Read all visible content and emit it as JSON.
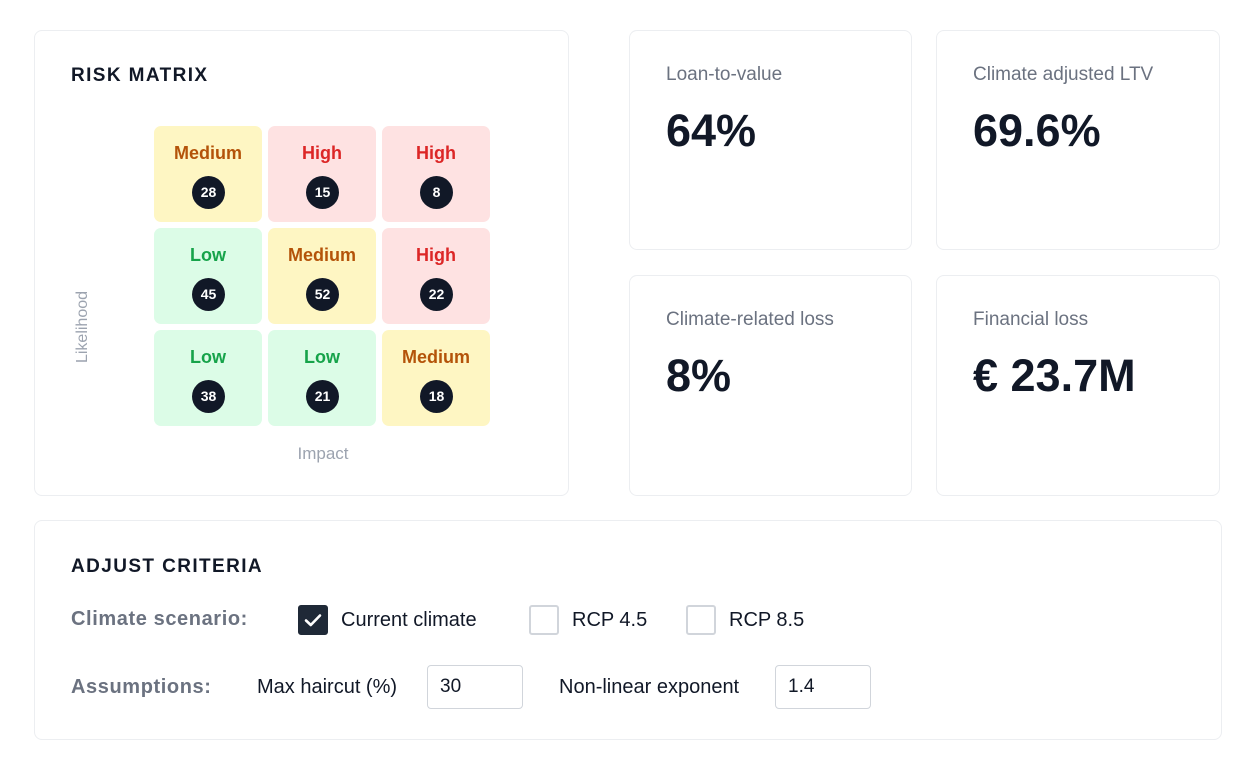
{
  "risk_matrix": {
    "title": "RISK MATRIX",
    "y_axis_label": "Likelihood",
    "x_axis_label": "Impact",
    "cells": [
      {
        "level": "medium",
        "label": "Medium",
        "count": "28"
      },
      {
        "level": "high",
        "label": "High",
        "count": "15"
      },
      {
        "level": "high",
        "label": "High",
        "count": "8"
      },
      {
        "level": "low",
        "label": "Low",
        "count": "45"
      },
      {
        "level": "medium",
        "label": "Medium",
        "count": "52"
      },
      {
        "level": "high",
        "label": "High",
        "count": "22"
      },
      {
        "level": "low",
        "label": "Low",
        "count": "38"
      },
      {
        "level": "low",
        "label": "Low",
        "count": "21"
      },
      {
        "level": "medium",
        "label": "Medium",
        "count": "18"
      }
    ],
    "colors": {
      "low": "#16a34a",
      "medium": "#b45309",
      "high": "#dc2626"
    }
  },
  "metrics": {
    "ltv": {
      "label": "Loan-to-value",
      "value": "64%"
    },
    "climate_ltv": {
      "label": "Climate adjusted LTV",
      "value": "69.6%"
    },
    "climate_loss": {
      "label": "Climate-related loss",
      "value": "8%"
    },
    "financial_loss": {
      "label": "Financial loss",
      "value": "€ 23.7M"
    }
  },
  "criteria": {
    "title": "ADJUST CRITERIA",
    "scenario_label": "Climate scenario:",
    "scenarios": [
      {
        "label": "Current climate",
        "checked": true
      },
      {
        "label": "RCP 4.5",
        "checked": false
      },
      {
        "label": "RCP 8.5",
        "checked": false
      }
    ],
    "assumptions_label": "Assumptions:",
    "max_haircut": {
      "label": "Max haircut (%)",
      "value": "30"
    },
    "exponent": {
      "label": "Non-linear exponent",
      "value": "1.4"
    }
  }
}
